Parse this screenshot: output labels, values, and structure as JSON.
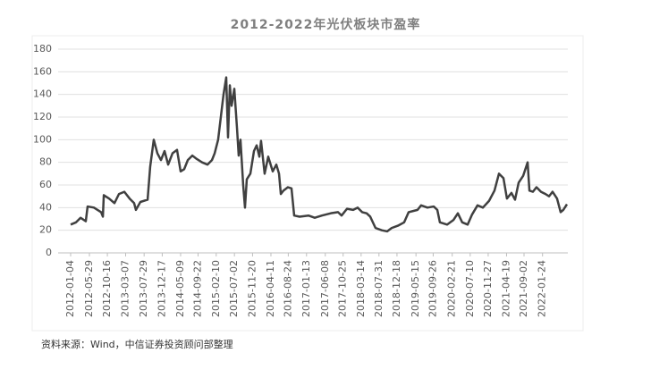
{
  "chart_data": {
    "type": "line",
    "title": "2012-2022年光伏板块市盈率",
    "source": "资料来源：Wind，中信证券投资顾问部整理",
    "color": "#404040",
    "grid": true,
    "ylim": [
      0,
      180
    ],
    "yticks": [
      0,
      20,
      40,
      60,
      80,
      100,
      120,
      140,
      160,
      180
    ],
    "xlim": [
      "2012-01-04",
      "2022-08-09"
    ],
    "xticks": [
      "2012-01-04",
      "2012-05-29",
      "2012-10-16",
      "2013-03-07",
      "2013-07-29",
      "2013-12-17",
      "2014-05-09",
      "2014-09-22",
      "2015-02-10",
      "2015-07-02",
      "2015-11-20",
      "2016-04-11",
      "2016-08-24",
      "2017-01-13",
      "2017-06-08",
      "2017-10-25",
      "2018-03-14",
      "2018-07-31",
      "2018-12-18",
      "2019-05-15",
      "2019-09-26",
      "2020-02-21",
      "2020-07-10",
      "2020-11-27",
      "2021-04-19",
      "2021-09-02",
      "2022-01-24"
    ],
    "x": [
      "2012-01-04",
      "2012-02-15",
      "2012-03-21",
      "2012-05-01",
      "2012-05-15",
      "2012-07-03",
      "2012-08-28",
      "2012-09-11",
      "2012-09-18",
      "2012-10-29",
      "2012-12-10",
      "2013-01-14",
      "2013-02-25",
      "2013-04-07",
      "2013-05-12",
      "2013-05-26",
      "2013-06-30",
      "2013-08-25",
      "2013-09-14",
      "2013-10-12",
      "2013-11-09",
      "2013-12-07",
      "2014-01-04",
      "2014-02-01",
      "2014-03-07",
      "2014-04-11",
      "2014-05-09",
      "2014-06-06",
      "2014-07-04",
      "2014-08-08",
      "2014-09-11",
      "2014-10-23",
      "2014-12-04",
      "2015-01-08",
      "2015-01-29",
      "2015-02-25",
      "2015-03-18",
      "2015-04-08",
      "2015-04-29",
      "2015-05-13",
      "2015-05-27",
      "2015-06-10",
      "2015-07-01",
      "2015-07-22",
      "2015-08-04",
      "2015-08-18",
      "2015-09-08",
      "2015-09-22",
      "2015-10-06",
      "2015-11-03",
      "2015-12-01",
      "2015-12-22",
      "2016-01-12",
      "2016-01-25",
      "2016-02-22",
      "2016-03-21",
      "2016-04-25",
      "2016-05-23",
      "2016-06-13",
      "2016-06-27",
      "2016-07-17",
      "2016-08-21",
      "2016-09-18",
      "2016-10-09",
      "2016-11-20",
      "2017-01-28",
      "2017-03-18",
      "2017-05-13",
      "2017-07-21",
      "2017-09-15",
      "2017-10-13",
      "2017-11-24",
      "2018-01-11",
      "2018-02-15",
      "2018-03-22",
      "2018-04-26",
      "2018-05-24",
      "2018-07-04",
      "2018-08-22",
      "2018-10-03",
      "2018-11-07",
      "2018-12-25",
      "2019-02-12",
      "2019-03-19",
      "2019-04-23",
      "2019-05-27",
      "2019-06-24",
      "2019-08-12",
      "2019-09-30",
      "2019-10-28",
      "2019-11-17",
      "2020-01-12",
      "2020-03-01",
      "2020-04-05",
      "2020-05-09",
      "2020-06-20",
      "2020-07-25",
      "2020-09-05",
      "2020-10-17",
      "2020-12-04",
      "2021-01-15",
      "2021-02-19",
      "2021-03-26",
      "2021-04-22",
      "2021-05-27",
      "2021-06-24",
      "2021-07-22",
      "2021-08-26",
      "2021-09-30",
      "2021-10-14",
      "2021-11-10",
      "2021-12-08",
      "2022-01-12",
      "2022-02-16",
      "2022-03-16",
      "2022-04-12",
      "2022-05-17",
      "2022-06-14",
      "2022-07-05",
      "2022-08-02"
    ],
    "values": [
      25,
      27,
      31,
      28,
      41,
      40,
      36,
      32,
      51,
      48,
      44,
      52,
      54,
      48,
      44,
      38,
      45,
      47,
      76,
      100,
      88,
      82,
      90,
      78,
      88,
      91,
      72,
      74,
      82,
      86,
      83,
      80,
      78,
      82,
      88,
      100,
      120,
      140,
      155,
      102,
      148,
      130,
      145,
      110,
      86,
      100,
      60,
      40,
      65,
      70,
      90,
      95,
      85,
      99,
      70,
      85,
      72,
      78,
      70,
      52,
      55,
      58,
      57,
      33,
      32,
      33,
      31,
      33,
      35,
      36,
      33,
      39,
      38,
      40,
      36,
      35,
      32,
      22,
      20,
      19,
      22,
      24,
      27,
      36,
      37,
      38,
      42,
      40,
      41,
      38,
      27,
      25,
      29,
      35,
      27,
      25,
      34,
      42,
      40,
      46,
      55,
      70,
      66,
      48,
      53,
      47,
      62,
      68,
      80,
      55,
      54,
      58,
      54,
      52,
      50,
      54,
      48,
      36,
      38,
      43
    ]
  }
}
